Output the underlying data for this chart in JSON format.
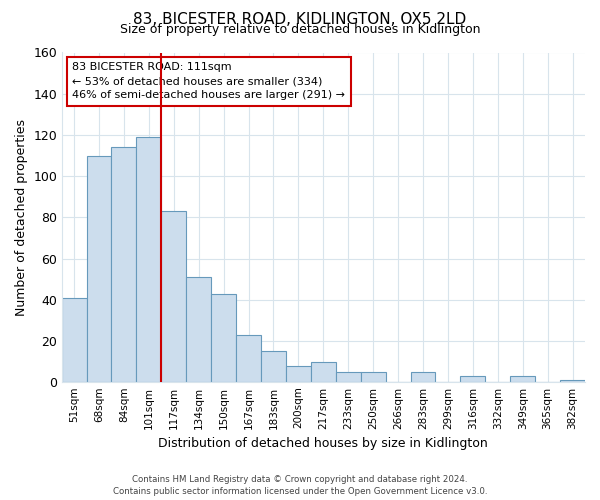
{
  "title": "83, BICESTER ROAD, KIDLINGTON, OX5 2LD",
  "subtitle": "Size of property relative to detached houses in Kidlington",
  "xlabel": "Distribution of detached houses by size in Kidlington",
  "ylabel": "Number of detached properties",
  "categories": [
    "51sqm",
    "68sqm",
    "84sqm",
    "101sqm",
    "117sqm",
    "134sqm",
    "150sqm",
    "167sqm",
    "183sqm",
    "200sqm",
    "217sqm",
    "233sqm",
    "250sqm",
    "266sqm",
    "283sqm",
    "299sqm",
    "316sqm",
    "332sqm",
    "349sqm",
    "365sqm",
    "382sqm"
  ],
  "values": [
    41,
    110,
    114,
    119,
    83,
    51,
    43,
    23,
    15,
    8,
    10,
    5,
    5,
    0,
    5,
    0,
    3,
    0,
    3,
    0,
    1
  ],
  "bar_color": "#ccdded",
  "bar_edge_color": "#6699bb",
  "highlight_line_color": "#cc0000",
  "annotation_title": "83 BICESTER ROAD: 111sqm",
  "annotation_line1": "← 53% of detached houses are smaller (334)",
  "annotation_line2": "46% of semi-detached houses are larger (291) →",
  "annotation_box_color": "#ffffff",
  "annotation_box_edge": "#cc0000",
  "ylim": [
    0,
    160
  ],
  "yticks": [
    0,
    20,
    40,
    60,
    80,
    100,
    120,
    140,
    160
  ],
  "footer_line1": "Contains HM Land Registry data © Crown copyright and database right 2024.",
  "footer_line2": "Contains public sector information licensed under the Open Government Licence v3.0.",
  "background_color": "#ffffff",
  "grid_color": "#d8e4ec"
}
